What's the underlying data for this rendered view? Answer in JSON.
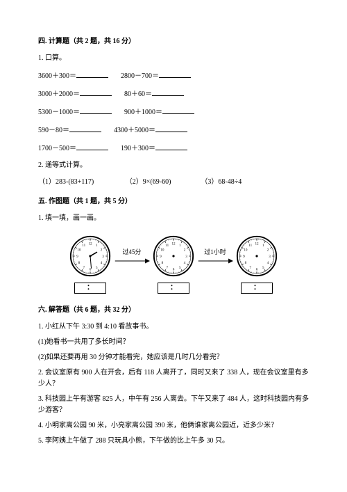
{
  "s4": {
    "title": "四. 计算题（共 2 题，共 16 分）",
    "q1": {
      "label": "1. 口算。",
      "rows": [
        {
          "a": "3600＋300＝",
          "b": "2800－700＝"
        },
        {
          "a": "3000＋2000＝",
          "b": "80＋60＝"
        },
        {
          "a": "5300－1000＝",
          "b": "900＋1000＝"
        },
        {
          "a": "590－80＝",
          "b": "4300＋5000＝"
        },
        {
          "a": "1700－500＝",
          "b": "190＋300＝"
        }
      ]
    },
    "q2": {
      "label": "2. 递等式计算。",
      "items": {
        "a": "（1）283-(83+117)",
        "b": "（2）9×(69-60)",
        "c": "（3）68-48÷4"
      }
    }
  },
  "s5": {
    "title": "五. 作图题（共 1 题，共 5 分）",
    "q1": {
      "label": "1. 填一填，画一画。"
    },
    "clocks": {
      "arrow1": "过45分",
      "arrow2": "过1小时",
      "box_text": "：",
      "first_hour_angle": -10,
      "first_min_angle": 175,
      "numbers": [
        "12",
        "1",
        "2",
        "3",
        "4",
        "5",
        "6",
        "7",
        "8",
        "9",
        "10",
        "11"
      ]
    }
  },
  "s6": {
    "title": "六. 解答题（共 6 题，共 32 分）",
    "q1": {
      "label": "1. 小红从下午 3:30 到 4:10 看故事书。",
      "sub1": "(1)她看书一共用了多长时间？",
      "sub2": "(2)如果还要再用 30 分钟才能看完，她应该是几时几分看完？"
    },
    "q2": "2. 会议室原有 900 人在开会，后有 118 人离开了，同时又来了 338 人，现在会议室里有多少人？",
    "q3": "3. 科技园上午有游客 825 人，中午有 256 人离去。下午又来了 484 人，这时科技园内有多少游客？",
    "q4": "4. 小明家离公园 90 米，小亮家离公园 390 米，他俩谁家离公园近，近多少米？",
    "q5": "5. 李阿姨上午做了 288 只玩具小熊，下午做的比上午多 30 只。"
  },
  "style": {
    "blank_w1": "46px",
    "blank_w2": "46px",
    "col_gap": "18px",
    "triple_gap": "30px"
  }
}
